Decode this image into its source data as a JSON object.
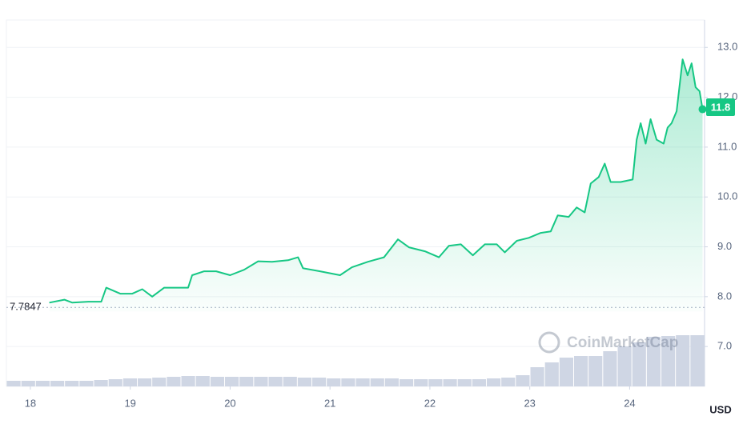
{
  "chart_data": {
    "type": "line",
    "x": [
      18.19,
      18.34,
      18.42,
      18.58,
      18.71,
      18.76,
      18.9,
      19.02,
      19.12,
      19.22,
      19.34,
      19.5,
      19.58,
      19.62,
      19.74,
      19.86,
      20.0,
      20.14,
      20.28,
      20.42,
      20.58,
      20.68,
      20.73,
      20.9,
      21.1,
      21.22,
      21.38,
      21.54,
      21.68,
      21.79,
      21.95,
      22.09,
      22.19,
      22.31,
      22.43,
      22.55,
      22.67,
      22.75,
      22.87,
      22.99,
      23.11,
      23.21,
      23.28,
      23.39,
      23.47,
      23.55,
      23.61,
      23.69,
      23.75,
      23.81,
      23.91,
      24.03,
      24.07,
      24.11,
      24.16,
      24.21,
      24.27,
      24.34,
      24.38,
      24.42,
      24.47,
      24.53,
      24.58,
      24.62,
      24.66,
      24.7,
      24.73
    ],
    "series": [
      {
        "color": "#16c784",
        "values": [
          7.88,
          7.94,
          7.88,
          7.9,
          7.9,
          8.18,
          8.06,
          8.06,
          8.15,
          8.0,
          8.18,
          8.18,
          8.18,
          8.43,
          8.51,
          8.51,
          8.43,
          8.54,
          8.71,
          8.7,
          8.73,
          8.79,
          8.57,
          8.51,
          8.43,
          8.59,
          8.7,
          8.79,
          9.15,
          8.99,
          8.91,
          8.79,
          9.02,
          9.05,
          8.83,
          9.05,
          9.05,
          8.89,
          9.12,
          9.18,
          9.28,
          9.31,
          9.63,
          9.6,
          9.79,
          9.69,
          10.27,
          10.4,
          10.67,
          10.3,
          10.3,
          10.35,
          11.15,
          11.48,
          11.07,
          11.56,
          11.15,
          11.07,
          11.39,
          11.48,
          11.72,
          12.76,
          12.44,
          12.68,
          12.2,
          12.12,
          11.76
        ]
      }
    ],
    "xlim": [
      17.76,
      24.75
    ],
    "xticks": [
      18,
      19,
      20,
      21,
      22,
      23,
      24
    ],
    "ylim": [
      6.2,
      13.55
    ],
    "yticks": [
      {
        "value": 7,
        "label": "7.0"
      },
      {
        "value": 8,
        "label": "8.0"
      },
      {
        "value": 9,
        "label": "9.0"
      },
      {
        "value": 10,
        "label": "10.0"
      },
      {
        "value": 11,
        "label": "11.0"
      },
      {
        "value": 12,
        "label": "12.0"
      },
      {
        "value": 13,
        "label": "13.0"
      }
    ],
    "grid": true,
    "reference_line": 7.7847,
    "current_price": 11.8,
    "currency": "USD",
    "watermark": "CoinMarketCap",
    "volume": {
      "color": "#cfd6e4",
      "ylim": [
        0,
        100
      ],
      "values": [
        7,
        7,
        7,
        7,
        7,
        7,
        8,
        9,
        10,
        10,
        11,
        12,
        13,
        13,
        12,
        12,
        12,
        12,
        12,
        12,
        11,
        11,
        10,
        10,
        10,
        10,
        10,
        9,
        9,
        9,
        9,
        9,
        9,
        10,
        11,
        14,
        24,
        30,
        36,
        38,
        38,
        44,
        50,
        55,
        62,
        63,
        64,
        64
      ]
    }
  }
}
